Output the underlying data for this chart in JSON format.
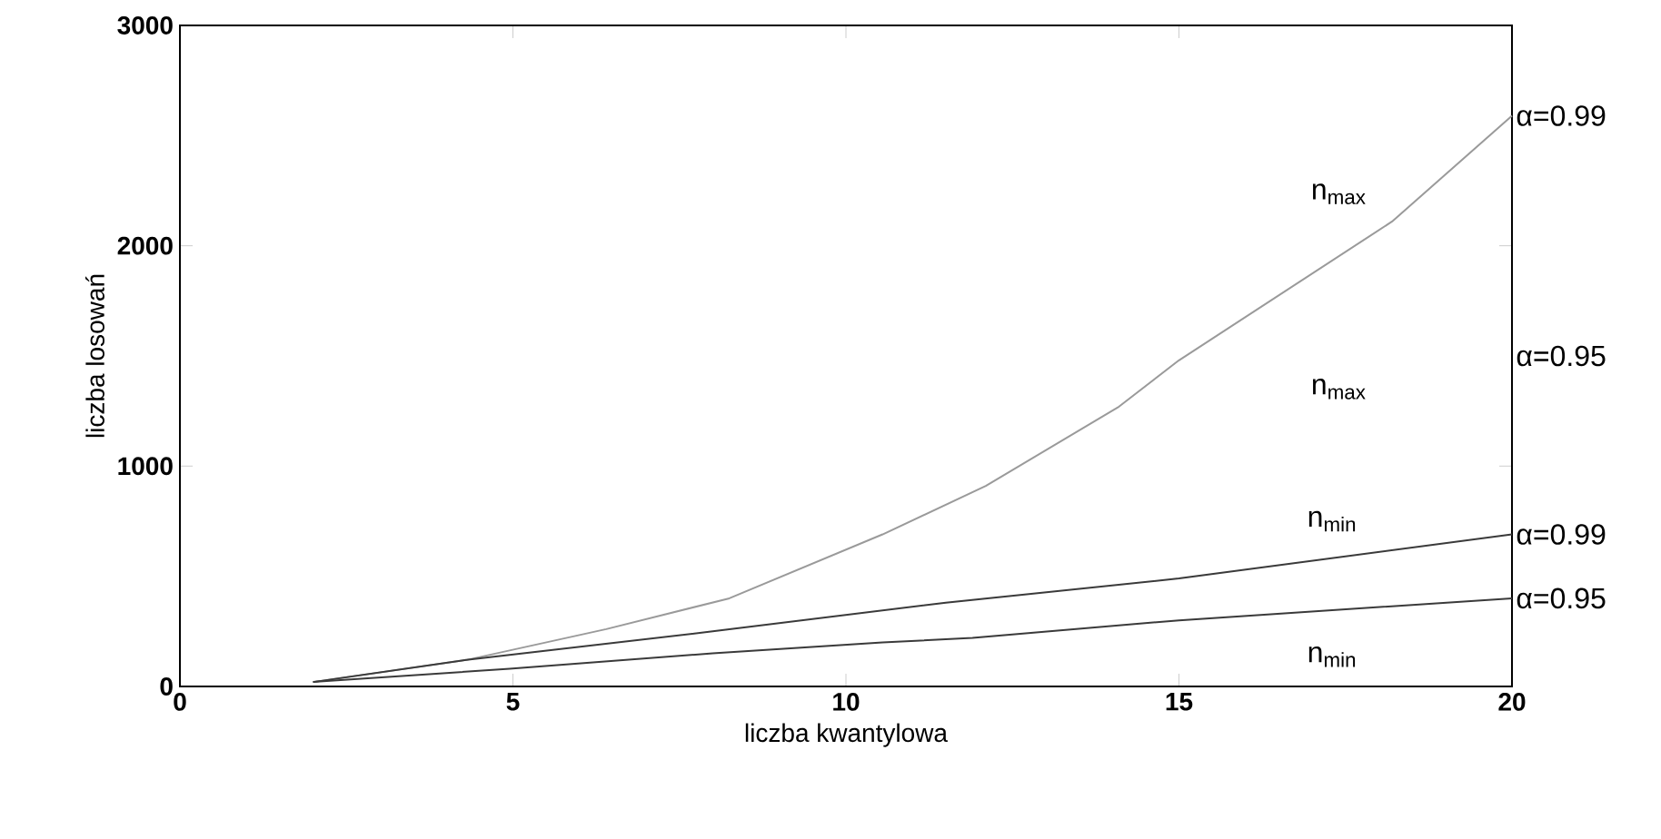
{
  "chart_data": {
    "type": "line",
    "xlabel": "liczba kwantylowa",
    "ylabel": "liczba losowań",
    "xlim": [
      0,
      20
    ],
    "ylim": [
      0,
      3000
    ],
    "xticks": [
      0,
      5,
      10,
      15,
      20
    ],
    "yticks": [
      0,
      1000,
      2000,
      3000
    ],
    "grid": false,
    "marker": "none",
    "line_style": "solid",
    "series": [
      {
        "name": "α=0.99",
        "color": "#9a9a9a",
        "x": [
          2,
          4.3,
          6.4,
          8.25,
          10.55,
          12.1,
          14.1,
          15,
          18.2,
          20
        ],
        "values": [
          20,
          120,
          260,
          400,
          690,
          910,
          1270,
          1480,
          2110,
          2590
        ]
      },
      {
        "name": "α=0.99",
        "color": "#3a3a3a",
        "x": [
          2,
          4.3,
          8,
          11.5,
          15,
          20
        ],
        "values": [
          20,
          120,
          250,
          380,
          490,
          690
        ]
      },
      {
        "name": "α=0.95",
        "color": "#3a3a3a",
        "x": [
          2,
          4.95,
          8,
          10.55,
          11.9,
          15,
          20
        ],
        "values": [
          20,
          80,
          150,
          200,
          220,
          300,
          400
        ]
      }
    ],
    "annotations": [
      "α=0.95",
      "n$_{max}$",
      "n$_{max}$",
      "n$_{min}$",
      "n$_{min}$"
    ]
  }
}
